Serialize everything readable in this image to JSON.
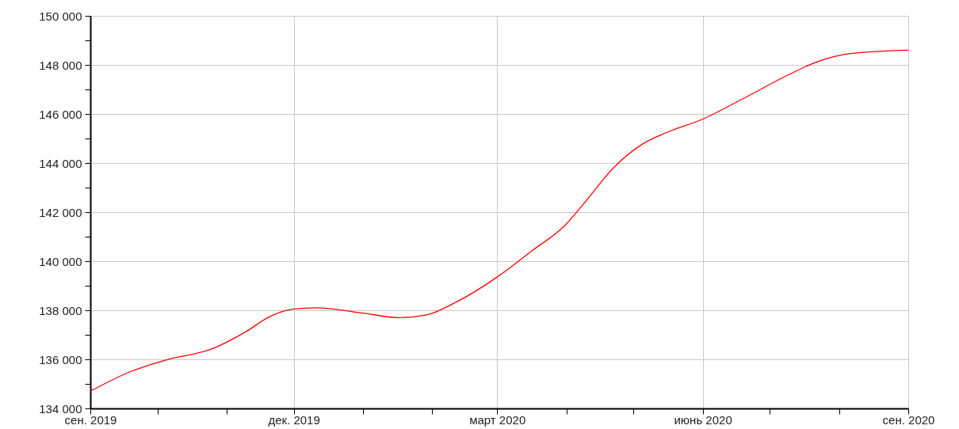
{
  "chart_data": {
    "type": "line",
    "x": [
      "2019-09-01",
      "2019-09-19",
      "2019-10-04",
      "2019-10-26",
      "2019-11-10",
      "2019-11-20",
      "2019-12-01",
      "2019-12-11",
      "2019-12-31",
      "2020-01-17",
      "2020-01-29",
      "2020-02-11",
      "2020-03-01",
      "2020-03-17",
      "2020-03-31",
      "2020-04-10",
      "2020-04-22",
      "2020-05-05",
      "2020-05-16",
      "2020-06-01",
      "2020-06-19",
      "2020-07-09",
      "2020-07-22",
      "2020-08-07",
      "2020-09-01"
    ],
    "series": [
      {
        "color": "#ff0000",
        "values": [
          134700,
          135500,
          135950,
          136450,
          137150,
          137730,
          138050,
          138100,
          137900,
          137700,
          137800,
          138300,
          139350,
          140450,
          141430,
          142480,
          143800,
          144770,
          145250,
          145790,
          146620,
          147580,
          148120,
          148470,
          148600
        ]
      }
    ],
    "xlim": [
      "2019-09-01",
      "2020-09-01"
    ],
    "xticks": [
      {
        "value": "2019-09-01",
        "label": "сен. 2019"
      },
      {
        "value": "2019-10-01",
        "label": null
      },
      {
        "value": "2019-11-01",
        "label": null
      },
      {
        "value": "2019-12-01",
        "label": "дек. 2019"
      },
      {
        "value": "2020-01-01",
        "label": null
      },
      {
        "value": "2020-02-01",
        "label": null
      },
      {
        "value": "2020-03-01",
        "label": "март 2020"
      },
      {
        "value": "2020-04-01",
        "label": null
      },
      {
        "value": "2020-05-01",
        "label": null
      },
      {
        "value": "2020-06-01",
        "label": "июнь 2020"
      },
      {
        "value": "2020-07-01",
        "label": null
      },
      {
        "value": "2020-08-01",
        "label": null
      },
      {
        "value": "2020-09-01",
        "label": "сен. 2020"
      }
    ],
    "ylim": [
      134000,
      150000
    ],
    "yticks": [
      {
        "value": 134000,
        "label": "134 000"
      },
      {
        "value": 135000,
        "label": null
      },
      {
        "value": 136000,
        "label": "136 000"
      },
      {
        "value": 137000,
        "label": null
      },
      {
        "value": 138000,
        "label": "138 000"
      },
      {
        "value": 139000,
        "label": null
      },
      {
        "value": 140000,
        "label": "140 000"
      },
      {
        "value": 141000,
        "label": null
      },
      {
        "value": 142000,
        "label": "142 000"
      },
      {
        "value": 143000,
        "label": null
      },
      {
        "value": 144000,
        "label": "144 000"
      },
      {
        "value": 145000,
        "label": null
      },
      {
        "value": 146000,
        "label": "146 000"
      },
      {
        "value": 147000,
        "label": null
      },
      {
        "value": 148000,
        "label": "148 000"
      },
      {
        "value": 149000,
        "label": null
      },
      {
        "value": 150000,
        "label": "150 000"
      }
    ],
    "grid": true,
    "marker": "none",
    "line_style": "solid"
  }
}
